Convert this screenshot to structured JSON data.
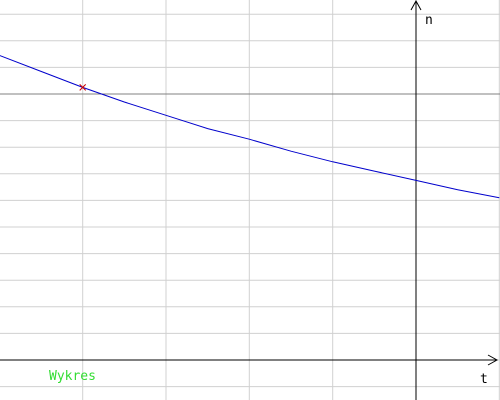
{
  "chart_data": {
    "type": "line",
    "title": "Wykres",
    "xlabel": "t",
    "ylabel": "n",
    "grid": true,
    "xlim": [
      -5,
      1
    ],
    "ylim": [
      -0.2,
      2.6
    ],
    "series": [
      {
        "x": [
          -5.0,
          -4.5,
          -4.0,
          -3.5,
          -3.0,
          -2.5,
          -2.0,
          -1.5,
          -1.0,
          -0.5,
          0.0,
          0.5,
          1.0
        ],
        "y": [
          2.29,
          2.17,
          2.05,
          1.94,
          1.84,
          1.74,
          1.66,
          1.57,
          1.49,
          1.42,
          1.35,
          1.28,
          1.22
        ]
      }
    ],
    "marker": {
      "x": -4.0,
      "y": 2.05
    }
  },
  "colors": {
    "line": "#0000cc",
    "grid": "#d0d0d0",
    "axis": "#000000",
    "marker": "#cc0000",
    "title": "#33dd33",
    "reference_line": "#808080"
  }
}
